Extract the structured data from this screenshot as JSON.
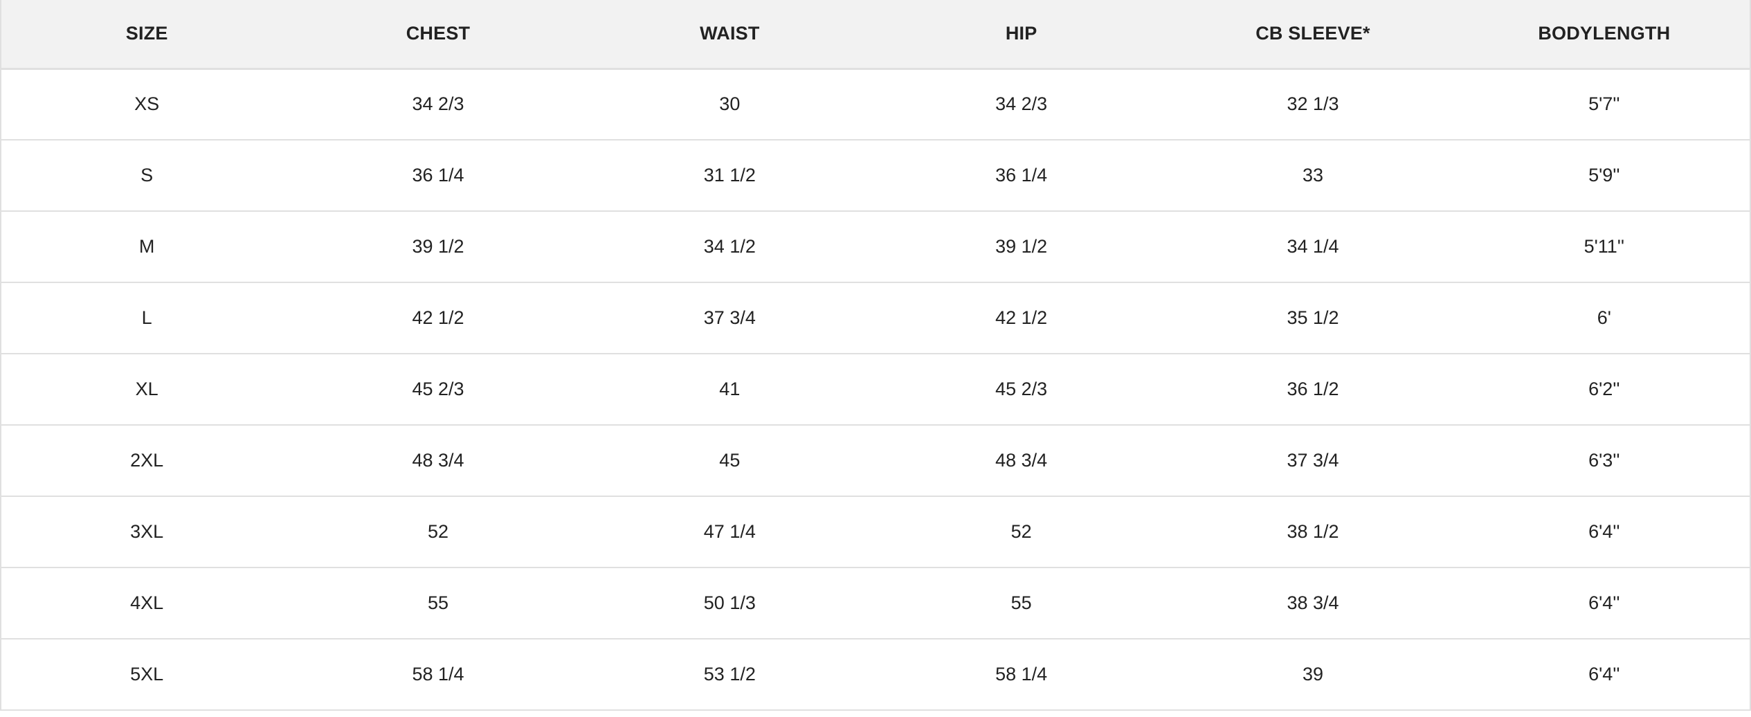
{
  "headers": [
    "SIZE",
    "CHEST",
    "WAIST",
    "HIP",
    "CB SLEEVE*",
    "BODYLENGTH"
  ],
  "rows": [
    [
      "XS",
      "34 2/3",
      "30",
      "34 2/3",
      "32 1/3",
      "5'7''"
    ],
    [
      "S",
      "36 1/4",
      "31 1/2",
      "36 1/4",
      "33",
      "5'9''"
    ],
    [
      "M",
      "39 1/2",
      "34 1/2",
      "39 1/2",
      "34 1/4",
      "5'11''"
    ],
    [
      "L",
      "42 1/2",
      "37 3/4",
      "42 1/2",
      "35 1/2",
      "6'"
    ],
    [
      "XL",
      "45 2/3",
      "41",
      "45 2/3",
      "36 1/2",
      "6'2''"
    ],
    [
      "2XL",
      "48 3/4",
      "45",
      "48 3/4",
      "37 3/4",
      "6'3''"
    ],
    [
      "3XL",
      "52",
      "47 1/4",
      "52",
      "38 1/2",
      "6'4''"
    ],
    [
      "4XL",
      "55",
      "50 1/3",
      "55",
      "38 3/4",
      "6'4''"
    ],
    [
      "5XL",
      "58 1/4",
      "53 1/2",
      "58 1/4",
      "39",
      "6'4''"
    ]
  ],
  "colors": {
    "header_bg": "#f2f2f2",
    "border": "#e0e0e0",
    "text": "#222222"
  }
}
